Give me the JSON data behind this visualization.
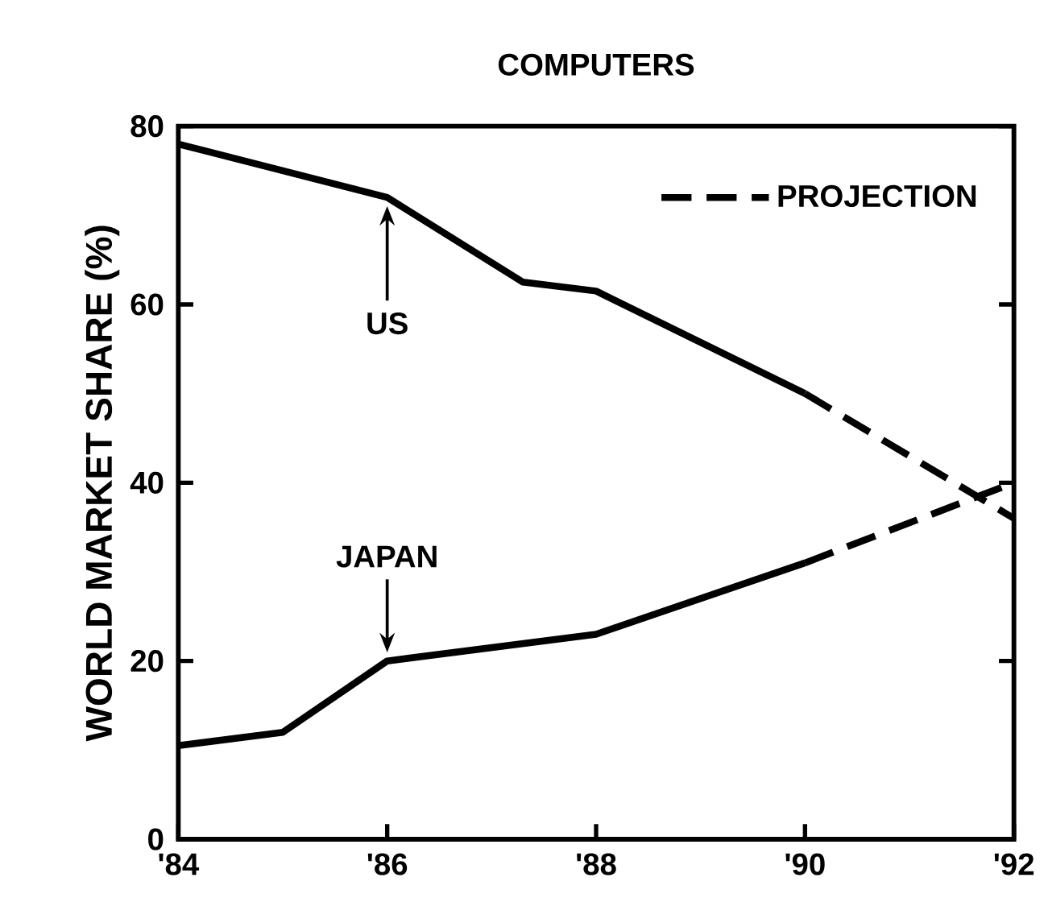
{
  "chart_data": {
    "type": "line",
    "title": "COMPUTERS",
    "ylabel": "WORLD MARKET SHARE (%)",
    "series": [
      {
        "name": "US",
        "color": "#000000",
        "line_style": "solid",
        "x": [
          1984,
          1986,
          1987.3,
          1988,
          1990
        ],
        "values": [
          78,
          72,
          62.5,
          61.5,
          50
        ]
      },
      {
        "name": "JAPAN",
        "color": "#000000",
        "line_style": "solid",
        "x": [
          1984,
          1985,
          1986,
          1988,
          1990
        ],
        "values": [
          10.5,
          12,
          20,
          23,
          31
        ]
      },
      {
        "name": "PROJECTION",
        "color": "#000000",
        "line_style": "dashed",
        "x": [
          1990,
          1992
        ],
        "values": [
          50,
          36
        ]
      },
      {
        "color": "#000000",
        "line_style": "dashed",
        "x": [
          1990,
          1992
        ],
        "values": [
          31,
          40
        ]
      }
    ],
    "xlim": [
      1984,
      1992
    ],
    "ylim": [
      0,
      80
    ],
    "xticks": [
      {
        "value": 1984,
        "label": "'84"
      },
      {
        "value": 1986,
        "label": "'86"
      },
      {
        "value": 1988,
        "label": "'88"
      },
      {
        "value": 1990,
        "label": "'90"
      },
      {
        "value": 1992,
        "label": "'92"
      }
    ],
    "yticks": [
      0,
      20,
      40,
      60,
      80
    ],
    "legend": "top right",
    "marker": "none",
    "grid": false
  }
}
